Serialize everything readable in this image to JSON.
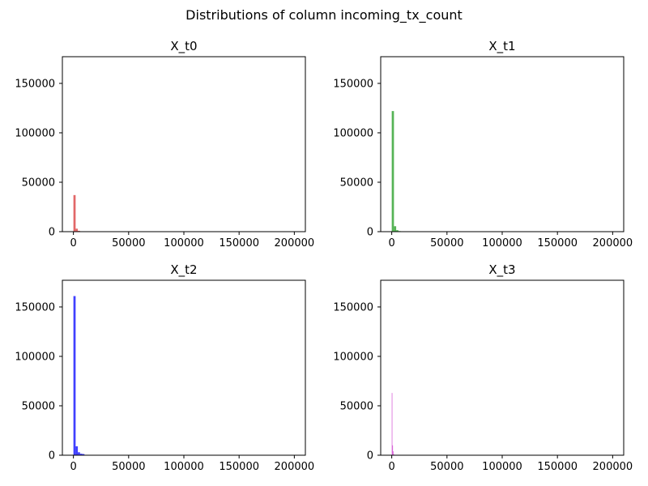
{
  "title": "Distributions of column incoming_tx_count",
  "chart_data": [
    {
      "type": "histogram",
      "title": "X_t0",
      "color": "#d62728",
      "bar_opacity": 0.7,
      "xlim": [
        -10000,
        210000
      ],
      "ylim": [
        0,
        177000
      ],
      "xticks": [
        0,
        50000,
        100000,
        150000,
        200000
      ],
      "yticks": [
        0,
        50000,
        100000,
        150000
      ],
      "bin_width": 2000,
      "bins": [
        {
          "x0": 0,
          "count": 37000
        },
        {
          "x0": 2000,
          "count": 3000
        },
        {
          "x0": 4000,
          "count": 800
        },
        {
          "x0": 6000,
          "count": 300
        }
      ]
    },
    {
      "type": "histogram",
      "title": "X_t1",
      "color": "#2ca02c",
      "bar_opacity": 0.8,
      "xlim": [
        -10000,
        210000
      ],
      "ylim": [
        0,
        177000
      ],
      "xticks": [
        0,
        50000,
        100000,
        150000,
        200000
      ],
      "yticks": [
        0,
        50000,
        100000,
        150000
      ],
      "bin_width": 2000,
      "bins": [
        {
          "x0": 0,
          "count": 122000
        },
        {
          "x0": 2000,
          "count": 5500
        },
        {
          "x0": 4000,
          "count": 1500
        },
        {
          "x0": 6000,
          "count": 600
        },
        {
          "x0": 8000,
          "count": 200
        }
      ]
    },
    {
      "type": "histogram",
      "title": "X_t2",
      "color": "#0000ff",
      "bar_opacity": 0.75,
      "xlim": [
        -10000,
        210000
      ],
      "ylim": [
        0,
        177000
      ],
      "xticks": [
        0,
        50000,
        100000,
        150000,
        200000
      ],
      "yticks": [
        0,
        50000,
        100000,
        150000
      ],
      "bin_width": 2000,
      "bins": [
        {
          "x0": 0,
          "count": 161000
        },
        {
          "x0": 2000,
          "count": 9000
        },
        {
          "x0": 4000,
          "count": 3000
        },
        {
          "x0": 6000,
          "count": 1500
        },
        {
          "x0": 8000,
          "count": 1200
        },
        {
          "x0": 10000,
          "count": 300
        }
      ]
    },
    {
      "type": "histogram",
      "title": "X_t3",
      "color": "#cc33cc",
      "bar_opacity": 0.75,
      "xlim": [
        -10000,
        210000
      ],
      "ylim": [
        0,
        177000
      ],
      "xticks": [
        0,
        50000,
        100000,
        150000,
        200000
      ],
      "yticks": [
        0,
        50000,
        100000,
        150000
      ],
      "bin_width": 500,
      "bins": [
        {
          "x0": 0,
          "count": 63000
        },
        {
          "x0": 500,
          "count": 10000
        },
        {
          "x0": 1000,
          "count": 4000
        },
        {
          "x0": 1500,
          "count": 1000
        }
      ]
    }
  ]
}
